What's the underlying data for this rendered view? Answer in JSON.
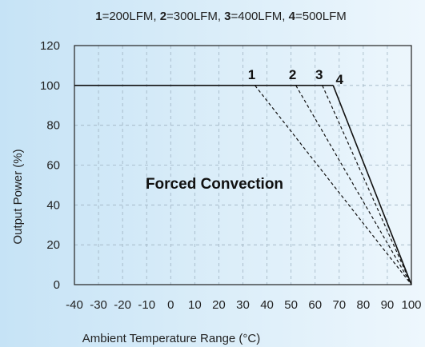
{
  "chart_data": {
    "type": "line",
    "title": "",
    "legend_text": [
      {
        "num": "1",
        "desc": "=200LFM, "
      },
      {
        "num": "2",
        "desc": "=300LFM, "
      },
      {
        "num": "3",
        "desc": "=400LFM, "
      },
      {
        "num": "4",
        "desc": "=500LFM"
      }
    ],
    "xlabel": "Ambient Temperature Range (°C)",
    "ylabel": "Output Power (%)",
    "xlim": [
      -40,
      100
    ],
    "ylim": [
      0,
      120
    ],
    "x_ticks": [
      -40,
      -30,
      -20,
      -10,
      0,
      10,
      20,
      30,
      40,
      50,
      60,
      70,
      80,
      90,
      100
    ],
    "y_ticks": [
      0,
      20,
      40,
      60,
      80,
      100,
      120
    ],
    "grid": true,
    "annotation": "Forced Convection",
    "base_line": {
      "x": [
        -40,
        67.5
      ],
      "y": [
        100,
        100
      ]
    },
    "series": [
      {
        "label": "1",
        "style": "dashed",
        "x": [
          35,
          100
        ],
        "y": [
          100,
          0
        ]
      },
      {
        "label": "2",
        "style": "dashed",
        "x": [
          52,
          100
        ],
        "y": [
          100,
          0
        ]
      },
      {
        "label": "3",
        "style": "dashed",
        "x": [
          63,
          100
        ],
        "y": [
          100,
          0
        ]
      },
      {
        "label": "4",
        "style": "solid",
        "x": [
          67.5,
          100
        ],
        "y": [
          100,
          0
        ]
      }
    ],
    "colors": {
      "axis": "#222222",
      "grid": "#9fb3c2",
      "line": "#111111"
    }
  }
}
